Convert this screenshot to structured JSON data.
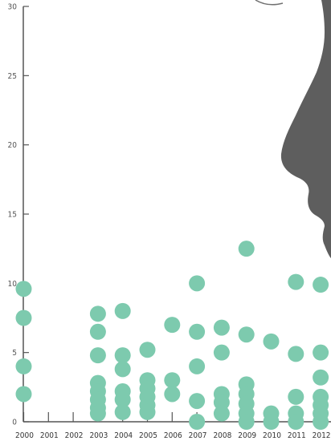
{
  "chart_data": {
    "type": "scatter",
    "title": "",
    "xlabel": "",
    "ylabel": "",
    "x_categories": [
      "2000",
      "2001",
      "2002",
      "2003",
      "2004",
      "2005",
      "2006",
      "2007",
      "2008",
      "2009",
      "2010",
      "2011",
      "2012"
    ],
    "ylim": [
      0,
      30
    ],
    "yticks": [
      0,
      5,
      10,
      15,
      20,
      25,
      30
    ],
    "y_tick_labels": [
      "0",
      "5",
      "10",
      "15",
      "20",
      "25",
      "30"
    ],
    "grid": false,
    "point_color": "#7dcaae",
    "axis_color": "#555555",
    "silhouette_color": "#5e5e5e",
    "points": [
      {
        "x": "2000",
        "y": 9.6
      },
      {
        "x": "2000",
        "y": 7.5
      },
      {
        "x": "2000",
        "y": 4.0
      },
      {
        "x": "2000",
        "y": 2.0
      },
      {
        "x": "2003",
        "y": 7.8
      },
      {
        "x": "2003",
        "y": 6.5
      },
      {
        "x": "2003",
        "y": 4.8
      },
      {
        "x": "2003",
        "y": 2.8
      },
      {
        "x": "2003",
        "y": 2.2
      },
      {
        "x": "2003",
        "y": 1.6
      },
      {
        "x": "2003",
        "y": 1.0
      },
      {
        "x": "2003",
        "y": 0.6
      },
      {
        "x": "2004",
        "y": 8.0
      },
      {
        "x": "2004",
        "y": 4.8
      },
      {
        "x": "2004",
        "y": 3.8
      },
      {
        "x": "2004",
        "y": 2.2
      },
      {
        "x": "2004",
        "y": 1.6
      },
      {
        "x": "2004",
        "y": 0.7
      },
      {
        "x": "2005",
        "y": 5.2
      },
      {
        "x": "2005",
        "y": 3.0
      },
      {
        "x": "2005",
        "y": 2.4
      },
      {
        "x": "2005",
        "y": 1.8
      },
      {
        "x": "2005",
        "y": 1.2
      },
      {
        "x": "2005",
        "y": 0.7
      },
      {
        "x": "2006",
        "y": 7.0
      },
      {
        "x": "2006",
        "y": 3.0
      },
      {
        "x": "2006",
        "y": 2.0
      },
      {
        "x": "2007",
        "y": 10.0
      },
      {
        "x": "2007",
        "y": 6.5
      },
      {
        "x": "2007",
        "y": 4.0
      },
      {
        "x": "2007",
        "y": 1.5
      },
      {
        "x": "2007",
        "y": 0.0
      },
      {
        "x": "2008",
        "y": 6.8
      },
      {
        "x": "2008",
        "y": 5.0
      },
      {
        "x": "2008",
        "y": 2.0
      },
      {
        "x": "2008",
        "y": 1.4
      },
      {
        "x": "2008",
        "y": 0.6
      },
      {
        "x": "2009",
        "y": 12.5
      },
      {
        "x": "2009",
        "y": 6.3
      },
      {
        "x": "2009",
        "y": 2.7
      },
      {
        "x": "2009",
        "y": 2.0
      },
      {
        "x": "2009",
        "y": 1.3
      },
      {
        "x": "2009",
        "y": 0.6
      },
      {
        "x": "2009",
        "y": 0.0
      },
      {
        "x": "2010",
        "y": 5.8
      },
      {
        "x": "2010",
        "y": 0.6
      },
      {
        "x": "2010",
        "y": 0.0
      },
      {
        "x": "2011",
        "y": 10.1
      },
      {
        "x": "2011",
        "y": 4.9
      },
      {
        "x": "2011",
        "y": 1.8
      },
      {
        "x": "2011",
        "y": 0.6
      },
      {
        "x": "2011",
        "y": 0.0
      },
      {
        "x": "2012",
        "y": 9.9
      },
      {
        "x": "2012",
        "y": 5.0
      },
      {
        "x": "2012",
        "y": 3.2
      },
      {
        "x": "2012",
        "y": 1.8
      },
      {
        "x": "2012",
        "y": 1.2
      },
      {
        "x": "2012",
        "y": 0.6
      },
      {
        "x": "2012",
        "y": 0.0
      }
    ]
  }
}
